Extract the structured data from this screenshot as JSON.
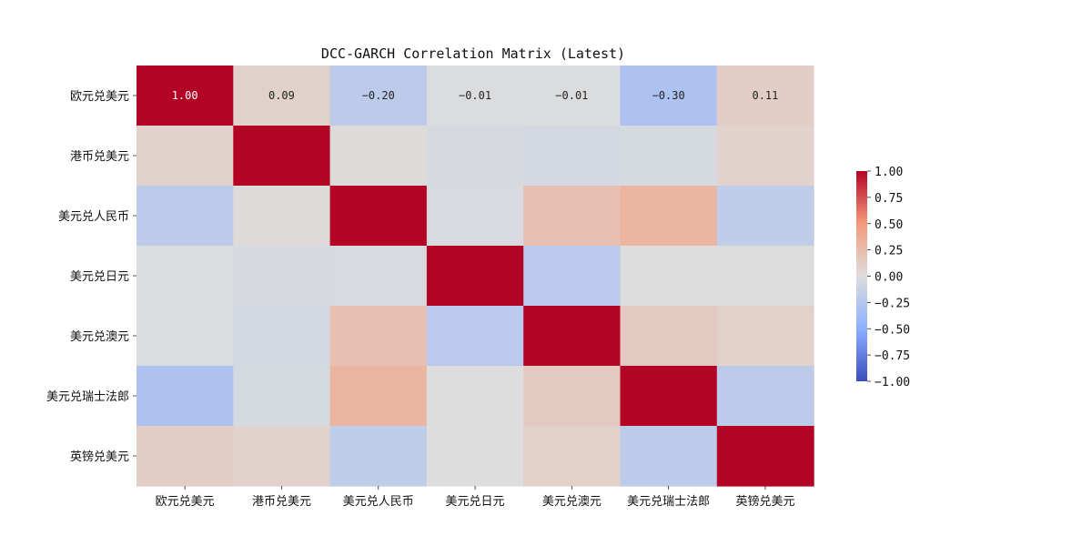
{
  "chart_data": {
    "type": "heatmap",
    "title": "DCC-GARCH Correlation Matrix (Latest)",
    "labels": [
      "欧元兑美元",
      "港币兑美元",
      "美元兑人民币",
      "美元兑日元",
      "美元兑澳元",
      "美元兑瑞士法郎",
      "英镑兑美元"
    ],
    "matrix": [
      [
        1.0,
        0.09,
        -0.2,
        -0.01,
        -0.01,
        -0.3,
        0.11
      ],
      [
        0.09,
        1.0,
        0.02,
        -0.04,
        -0.06,
        -0.05,
        0.08
      ],
      [
        -0.2,
        0.02,
        1.0,
        -0.03,
        0.22,
        0.3,
        -0.18
      ],
      [
        -0.01,
        -0.04,
        -0.03,
        1.0,
        -0.22,
        0.0,
        0.0
      ],
      [
        -0.01,
        -0.06,
        0.22,
        -0.22,
        1.0,
        0.15,
        0.1
      ],
      [
        -0.3,
        -0.05,
        0.3,
        0.0,
        0.15,
        1.0,
        -0.2
      ],
      [
        0.11,
        0.08,
        -0.18,
        0.0,
        0.1,
        -0.2,
        1.0
      ]
    ],
    "annotated_rows": [
      0
    ],
    "value_format": "0.00",
    "colormap": "coolwarm",
    "colormap_stops": [
      "#3b4cc0",
      "#8db0fe",
      "#dddddd",
      "#f49a7b",
      "#b40426"
    ],
    "vmin": -1.0,
    "vmax": 1.0,
    "colorbar_ticks": [
      1.0,
      0.75,
      0.5,
      0.25,
      0.0,
      -0.25,
      -0.5,
      -0.75,
      -1.0
    ],
    "colorbar_tick_labels": [
      "1.00",
      "0.75",
      "0.50",
      "0.25",
      "0.00",
      "−0.25",
      "−0.50",
      "−0.75",
      "−1.00"
    ]
  }
}
